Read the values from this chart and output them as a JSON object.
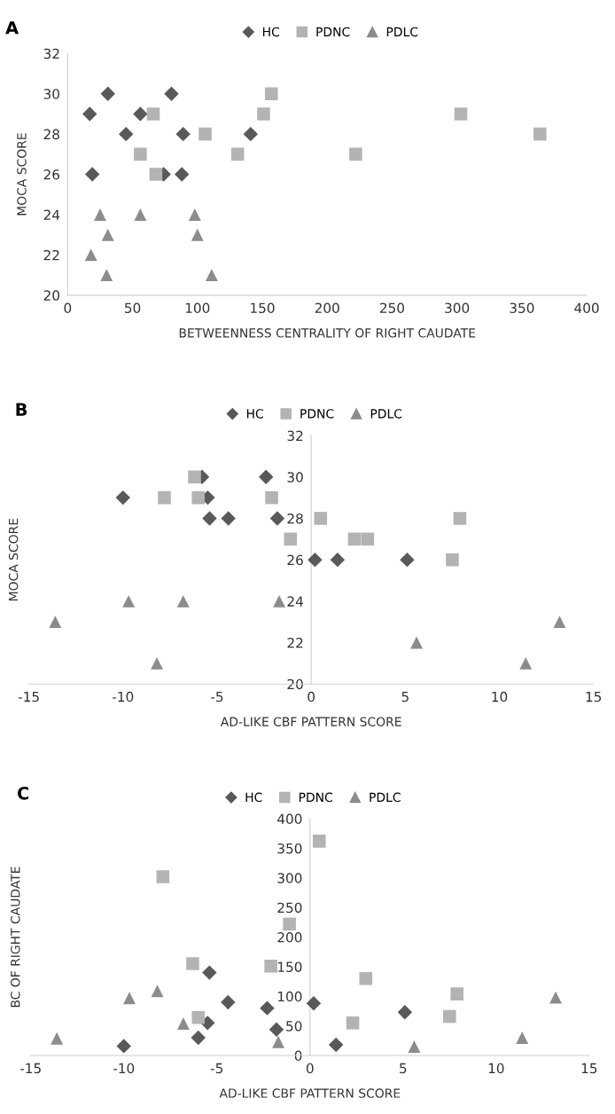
{
  "chart_data": [
    {
      "type": "scatter",
      "title": "A",
      "xlabel": "BETWEENNESS CENTRALITY OF RIGHT CAUDATE",
      "ylabel": "MOCA SCORE",
      "xlim": [
        0,
        400
      ],
      "xticks": [
        0,
        50,
        100,
        150,
        200,
        250,
        300,
        350,
        400
      ],
      "ylim": [
        20,
        32
      ],
      "yticks": [
        20,
        22,
        24,
        26,
        28,
        30,
        32
      ],
      "legend": "top",
      "grid": false,
      "series": [
        {
          "name": "HC",
          "color": "#595959",
          "marker": "diamond",
          "x": [
            17,
            31,
            19,
            45,
            56,
            80,
            89,
            74,
            88,
            141
          ],
          "values": [
            29,
            30,
            26,
            28,
            29,
            30,
            28,
            26,
            26,
            28
          ]
        },
        {
          "name": "PDNC",
          "color": "#b3b3b3",
          "marker": "square",
          "x": [
            66,
            56,
            68,
            106,
            131,
            151,
            157,
            222,
            303,
            364
          ],
          "values": [
            29,
            27,
            26,
            28,
            27,
            29,
            30,
            27,
            29,
            28
          ]
        },
        {
          "name": "PDLC",
          "color": "#8c8c8c",
          "marker": "triangle",
          "x": [
            25,
            31,
            18,
            30,
            56,
            98,
            100,
            111
          ],
          "values": [
            24,
            23,
            22,
            21,
            24,
            24,
            23,
            21
          ]
        }
      ]
    },
    {
      "type": "scatter",
      "title": "B",
      "xlabel": "AD-LIKE CBF PATTERN SCORE",
      "ylabel": "MOCA SCORE",
      "xlim": [
        -15,
        15
      ],
      "xticks": [
        -15,
        -10,
        -5,
        0,
        5,
        10,
        15
      ],
      "ylim": [
        20,
        32
      ],
      "yticks": [
        20,
        22,
        24,
        26,
        28,
        30,
        32
      ],
      "legend": "top",
      "grid": false,
      "series": [
        {
          "name": "HC",
          "color": "#595959",
          "marker": "diamond",
          "x": [
            -10,
            -5.8,
            -5.5,
            -5.4,
            -4.4,
            -2.4,
            -1.8,
            0.2,
            1.4,
            5.1
          ],
          "values": [
            29,
            30,
            29,
            28,
            28,
            30,
            28,
            26,
            26,
            26
          ]
        },
        {
          "name": "PDNC",
          "color": "#b3b3b3",
          "marker": "square",
          "x": [
            -7.8,
            -6.2,
            -6.0,
            -2.1,
            -1.1,
            0.5,
            2.3,
            3.0,
            7.5,
            7.9
          ],
          "values": [
            29,
            30,
            29,
            29,
            27,
            28,
            27,
            27,
            26,
            28
          ]
        },
        {
          "name": "PDLC",
          "color": "#8c8c8c",
          "marker": "triangle",
          "x": [
            -13.6,
            -9.7,
            -8.2,
            -6.8,
            -1.7,
            5.6,
            11.4,
            13.2
          ],
          "values": [
            23,
            24,
            21,
            24,
            24,
            22,
            21,
            23
          ]
        }
      ]
    },
    {
      "type": "scatter",
      "title": "C",
      "xlabel": "AD-LIKE CBF PATTERN SCORE",
      "ylabel": "BC OF RIGHT CAUDATE",
      "xlim": [
        -15,
        15
      ],
      "xticks": [
        -15,
        -10,
        -5,
        0,
        5,
        10,
        15
      ],
      "ylim": [
        0,
        400
      ],
      "yticks": [
        0,
        50,
        100,
        150,
        200,
        250,
        300,
        350,
        400
      ],
      "legend": "top",
      "grid": false,
      "series": [
        {
          "name": "HC",
          "color": "#595959",
          "marker": "diamond",
          "x": [
            -10,
            -6,
            -5.4,
            -5.5,
            -4.4,
            -2.3,
            -1.8,
            0.2,
            1.4,
            5.1
          ],
          "values": [
            16,
            30,
            140,
            55,
            90,
            80,
            44,
            88,
            18,
            73
          ]
        },
        {
          "name": "PDNC",
          "color": "#b3b3b3",
          "marker": "square",
          "x": [
            -7.9,
            -6.3,
            -6.0,
            -2.1,
            -1.1,
            0.5,
            2.3,
            3.0,
            7.5,
            7.9
          ],
          "values": [
            302,
            155,
            64,
            151,
            222,
            362,
            55,
            130,
            66,
            104
          ]
        },
        {
          "name": "PDLC",
          "color": "#8c8c8c",
          "marker": "triangle",
          "x": [
            -13.6,
            -9.7,
            -8.2,
            -6.8,
            -1.7,
            5.6,
            11.4,
            13.2
          ],
          "values": [
            29,
            97,
            109,
            54,
            23,
            15,
            30,
            98
          ]
        }
      ]
    }
  ]
}
